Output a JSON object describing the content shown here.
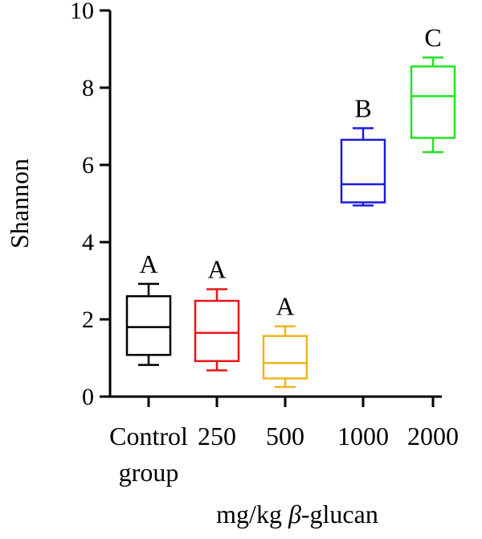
{
  "chart_data": {
    "type": "box",
    "ylabel": "Shannon",
    "xlabel": {
      "prefix": "mg/kg ",
      "italic": "β",
      "suffix": "-glucan"
    },
    "ylim": [
      0,
      10
    ],
    "yticks": [
      0,
      2,
      4,
      6,
      8,
      10
    ],
    "grid": false,
    "legend": "none",
    "categories": [
      {
        "lines": [
          "Control",
          "group"
        ],
        "color": "#000000",
        "min": 0.82,
        "q1": 1.08,
        "median": 1.8,
        "q3": 2.6,
        "max": 2.92,
        "letter": "A"
      },
      {
        "lines": [
          "250"
        ],
        "color": "#e8141b",
        "min": 0.68,
        "q1": 0.92,
        "median": 1.65,
        "q3": 2.48,
        "max": 2.78,
        "letter": "A"
      },
      {
        "lines": [
          "500"
        ],
        "color": "#f0b41e",
        "min": 0.25,
        "q1": 0.47,
        "median": 0.87,
        "q3": 1.57,
        "max": 1.82,
        "letter": "A"
      },
      {
        "lines": [
          "1000"
        ],
        "color": "#1b1bdc",
        "min": 4.95,
        "q1": 5.03,
        "median": 5.5,
        "q3": 6.65,
        "max": 6.95,
        "letter": "B"
      },
      {
        "lines": [
          "2000"
        ],
        "color": "#1ee61e",
        "min": 6.33,
        "q1": 6.7,
        "median": 7.78,
        "q3": 8.55,
        "max": 8.78,
        "letter": "C"
      }
    ]
  }
}
